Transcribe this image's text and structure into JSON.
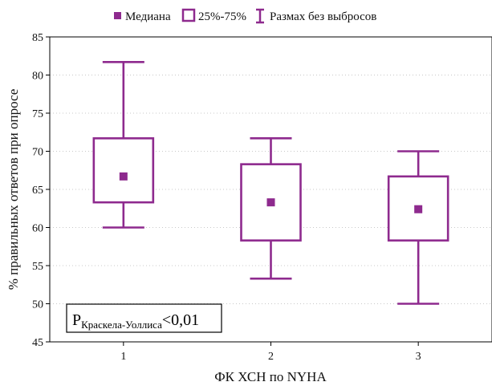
{
  "chart_data": {
    "type": "box",
    "xlabel": "ФК ХСН по NYHA",
    "ylabel": "% правильных ответов при опросе",
    "ylim": [
      45,
      85
    ],
    "yticks": [
      45,
      50,
      55,
      60,
      65,
      70,
      75,
      80,
      85
    ],
    "categories": [
      "1",
      "2",
      "3"
    ],
    "boxes": [
      {
        "category": "1",
        "median": 66.7,
        "q1": 63.3,
        "q3": 71.7,
        "min": 60.0,
        "max": 81.7
      },
      {
        "category": "2",
        "median": 63.3,
        "q1": 58.3,
        "q3": 68.3,
        "min": 53.3,
        "max": 71.7
      },
      {
        "category": "3",
        "median": 62.4,
        "q1": 58.3,
        "q3": 66.7,
        "min": 50.0,
        "max": 70.0
      }
    ],
    "legend": {
      "median": "Медиана",
      "box": "25%-75%",
      "whisker": "Размах без выбросов"
    },
    "annotation": {
      "p_main": "P",
      "p_sub": "Краскела-Уоллиса",
      "p_value": "<0,01"
    },
    "color": "#8e2a8e",
    "grid": true
  }
}
